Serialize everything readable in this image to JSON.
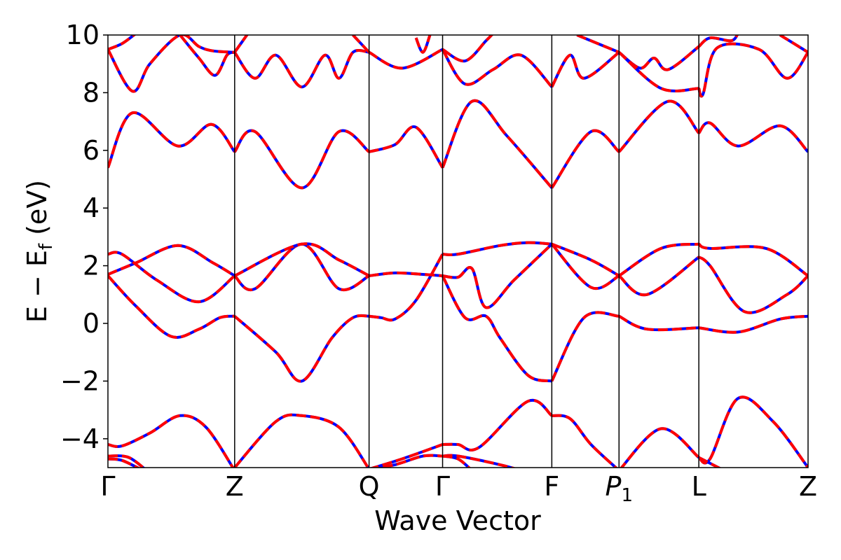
{
  "chart_data": {
    "type": "line",
    "title": "",
    "xlabel": "Wave Vector",
    "ylabel_main": "E − E",
    "ylabel_sub": "f",
    "ylabel_unit": " (eV)",
    "ylim": [
      -5,
      10
    ],
    "yticks": [
      -4,
      -2,
      0,
      2,
      4,
      6,
      8,
      10
    ],
    "ytick_labels": [
      "−4",
      "−2",
      "0",
      "2",
      "4",
      "6",
      "8",
      "10"
    ],
    "xlim": [
      0,
      1
    ],
    "kpoints": [
      {
        "x": 0.0,
        "label": "Γ",
        "sub": ""
      },
      {
        "x": 0.181,
        "label": "Z",
        "sub": ""
      },
      {
        "x": 0.373,
        "label": "Q",
        "sub": ""
      },
      {
        "x": 0.478,
        "label": "Γ",
        "sub": ""
      },
      {
        "x": 0.634,
        "label": "F",
        "sub": ""
      },
      {
        "x": 0.73,
        "label": "P",
        "sub": "1"
      },
      {
        "x": 0.844,
        "label": "L",
        "sub": ""
      },
      {
        "x": 1.0,
        "label": "Z",
        "sub": ""
      }
    ],
    "colors": {
      "solid": "#0000ff",
      "dashed": "#ff0000"
    },
    "bands": [
      {
        "points": [
          [
            0.0,
            -4.2
          ],
          [
            0.02,
            -4.25
          ],
          [
            0.06,
            -3.8
          ],
          [
            0.103,
            -3.2
          ],
          [
            0.14,
            -3.6
          ],
          [
            0.181,
            -5.1
          ]
        ]
      },
      {
        "points": [
          [
            0.0,
            -4.6
          ],
          [
            0.03,
            -4.65
          ],
          [
            0.06,
            -5.2
          ]
        ]
      },
      {
        "points": [
          [
            0.0,
            -4.7
          ],
          [
            0.02,
            -4.75
          ],
          [
            0.05,
            -5.1
          ]
        ]
      },
      {
        "points": [
          [
            0.0,
            1.65
          ],
          [
            0.04,
            0.6
          ],
          [
            0.09,
            -0.45
          ],
          [
            0.13,
            -0.2
          ],
          [
            0.16,
            0.2
          ],
          [
            0.181,
            0.25
          ]
        ]
      },
      {
        "points": [
          [
            0.0,
            1.7
          ],
          [
            0.04,
            2.1
          ],
          [
            0.1,
            2.7
          ],
          [
            0.15,
            2.1
          ],
          [
            0.181,
            1.65
          ]
        ]
      },
      {
        "points": [
          [
            0.0,
            2.4
          ],
          [
            0.02,
            2.4
          ],
          [
            0.07,
            1.5
          ],
          [
            0.13,
            0.75
          ],
          [
            0.181,
            1.65
          ]
        ]
      },
      {
        "points": [
          [
            0.0,
            5.4
          ],
          [
            0.035,
            7.3
          ],
          [
            0.1,
            6.15
          ],
          [
            0.148,
            6.9
          ],
          [
            0.181,
            5.95
          ]
        ]
      },
      {
        "points": [
          [
            0.0,
            9.5
          ],
          [
            0.035,
            8.05
          ],
          [
            0.06,
            9.0
          ],
          [
            0.103,
            10.0
          ],
          [
            0.13,
            9.6
          ],
          [
            0.15,
            9.45
          ],
          [
            0.181,
            9.4
          ]
        ]
      },
      {
        "points": [
          [
            0.0,
            9.5
          ],
          [
            0.02,
            9.7
          ],
          [
            0.04,
            10.05
          ]
        ]
      },
      {
        "points": [
          [
            0.103,
            10.0
          ],
          [
            0.13,
            9.2
          ],
          [
            0.153,
            8.6
          ],
          [
            0.17,
            9.3
          ],
          [
            0.181,
            9.4
          ]
        ]
      },
      {
        "points": [
          [
            0.181,
            -5.0
          ],
          [
            0.24,
            -3.4
          ],
          [
            0.277,
            -3.2
          ],
          [
            0.33,
            -3.6
          ],
          [
            0.373,
            -5.05
          ]
        ]
      },
      {
        "points": [
          [
            0.181,
            0.25
          ],
          [
            0.24,
            -1.0
          ],
          [
            0.277,
            -2.0
          ],
          [
            0.32,
            -0.5
          ],
          [
            0.35,
            0.2
          ],
          [
            0.373,
            0.25
          ]
        ]
      },
      {
        "points": [
          [
            0.181,
            1.65
          ],
          [
            0.21,
            1.2
          ],
          [
            0.277,
            2.75
          ],
          [
            0.33,
            1.2
          ],
          [
            0.373,
            1.65
          ]
        ]
      },
      {
        "points": [
          [
            0.181,
            1.65
          ],
          [
            0.277,
            2.75
          ],
          [
            0.33,
            2.2
          ],
          [
            0.373,
            1.65
          ]
        ]
      },
      {
        "points": [
          [
            0.181,
            5.95
          ],
          [
            0.21,
            6.65
          ],
          [
            0.277,
            4.7
          ],
          [
            0.33,
            6.65
          ],
          [
            0.373,
            5.95
          ]
        ]
      },
      {
        "points": [
          [
            0.181,
            9.4
          ],
          [
            0.21,
            8.5
          ],
          [
            0.24,
            9.3
          ],
          [
            0.277,
            8.2
          ],
          [
            0.31,
            9.3
          ],
          [
            0.33,
            8.5
          ],
          [
            0.35,
            9.4
          ],
          [
            0.373,
            9.4
          ]
        ]
      },
      {
        "points": [
          [
            0.181,
            9.4
          ],
          [
            0.2,
            10.05
          ]
        ]
      },
      {
        "points": [
          [
            0.35,
            10.0
          ],
          [
            0.373,
            9.4
          ]
        ]
      },
      {
        "points": [
          [
            0.373,
            0.25
          ],
          [
            0.39,
            0.2
          ],
          [
            0.41,
            0.15
          ],
          [
            0.44,
            0.8
          ],
          [
            0.478,
            2.4
          ]
        ]
      },
      {
        "points": [
          [
            0.373,
            1.65
          ],
          [
            0.41,
            1.75
          ],
          [
            0.45,
            1.7
          ],
          [
            0.478,
            1.65
          ]
        ]
      },
      {
        "points": [
          [
            0.373,
            5.95
          ],
          [
            0.41,
            6.2
          ],
          [
            0.44,
            6.8
          ],
          [
            0.478,
            5.4
          ]
        ]
      },
      {
        "points": [
          [
            0.373,
            9.4
          ],
          [
            0.42,
            8.85
          ],
          [
            0.478,
            9.5
          ]
        ]
      },
      {
        "points": [
          [
            0.373,
            -5.05
          ],
          [
            0.41,
            -4.9
          ],
          [
            0.45,
            -4.6
          ],
          [
            0.478,
            -4.6
          ]
        ]
      },
      {
        "points": [
          [
            0.373,
            -5.05
          ],
          [
            0.42,
            -4.7
          ],
          [
            0.478,
            -4.2
          ]
        ]
      },
      {
        "points": [
          [
            0.44,
            9.9
          ],
          [
            0.45,
            9.4
          ],
          [
            0.46,
            10.0
          ]
        ]
      },
      {
        "points": [
          [
            0.478,
            2.4
          ],
          [
            0.5,
            2.4
          ],
          [
            0.56,
            2.7
          ],
          [
            0.6,
            2.8
          ],
          [
            0.634,
            2.75
          ]
        ]
      },
      {
        "points": [
          [
            0.478,
            1.65
          ],
          [
            0.5,
            1.6
          ],
          [
            0.52,
            1.9
          ],
          [
            0.54,
            0.55
          ],
          [
            0.58,
            1.5
          ],
          [
            0.634,
            2.75
          ]
        ]
      },
      {
        "points": [
          [
            0.478,
            1.65
          ],
          [
            0.51,
            0.2
          ],
          [
            0.54,
            0.25
          ],
          [
            0.56,
            -0.5
          ],
          [
            0.6,
            -1.8
          ],
          [
            0.634,
            -2.0
          ]
        ]
      },
      {
        "points": [
          [
            0.478,
            5.4
          ],
          [
            0.52,
            7.7
          ],
          [
            0.57,
            6.5
          ],
          [
            0.634,
            4.7
          ]
        ]
      },
      {
        "points": [
          [
            0.478,
            9.5
          ],
          [
            0.51,
            8.3
          ],
          [
            0.55,
            8.8
          ],
          [
            0.59,
            9.3
          ],
          [
            0.634,
            8.2
          ]
        ]
      },
      {
        "points": [
          [
            0.478,
            9.5
          ],
          [
            0.51,
            9.1
          ],
          [
            0.54,
            9.8
          ],
          [
            0.55,
            10.05
          ]
        ]
      },
      {
        "points": [
          [
            0.478,
            -4.2
          ],
          [
            0.5,
            -4.2
          ],
          [
            0.53,
            -4.3
          ],
          [
            0.6,
            -2.7
          ],
          [
            0.634,
            -3.2
          ]
        ]
      },
      {
        "points": [
          [
            0.478,
            -4.6
          ],
          [
            0.5,
            -4.6
          ],
          [
            0.56,
            -4.9
          ],
          [
            0.59,
            -5.1
          ]
        ]
      },
      {
        "points": [
          [
            0.478,
            -4.6
          ],
          [
            0.5,
            -4.7
          ],
          [
            0.52,
            -5.1
          ]
        ]
      },
      {
        "points": [
          [
            0.634,
            2.75
          ],
          [
            0.69,
            1.25
          ],
          [
            0.73,
            1.65
          ]
        ]
      },
      {
        "points": [
          [
            0.634,
            2.75
          ],
          [
            0.69,
            2.2
          ],
          [
            0.73,
            1.65
          ]
        ]
      },
      {
        "points": [
          [
            0.634,
            -2.0
          ],
          [
            0.68,
            0.2
          ],
          [
            0.73,
            0.25
          ]
        ]
      },
      {
        "points": [
          [
            0.634,
            4.7
          ],
          [
            0.69,
            6.65
          ],
          [
            0.73,
            5.95
          ]
        ]
      },
      {
        "points": [
          [
            0.634,
            8.2
          ],
          [
            0.66,
            9.3
          ],
          [
            0.68,
            8.5
          ],
          [
            0.73,
            9.4
          ]
        ]
      },
      {
        "points": [
          [
            0.634,
            -3.2
          ],
          [
            0.66,
            -3.3
          ],
          [
            0.69,
            -4.2
          ],
          [
            0.73,
            -5.1
          ]
        ]
      },
      {
        "points": [
          [
            0.67,
            10.0
          ],
          [
            0.73,
            9.4
          ]
        ]
      },
      {
        "points": [
          [
            0.73,
            -5.1
          ],
          [
            0.79,
            -3.65
          ],
          [
            0.844,
            -4.65
          ]
        ]
      },
      {
        "points": [
          [
            0.73,
            0.25
          ],
          [
            0.77,
            -0.2
          ],
          [
            0.844,
            -0.15
          ]
        ]
      },
      {
        "points": [
          [
            0.73,
            1.65
          ],
          [
            0.77,
            1.0
          ],
          [
            0.844,
            2.3
          ]
        ]
      },
      {
        "points": [
          [
            0.73,
            1.65
          ],
          [
            0.79,
            2.6
          ],
          [
            0.844,
            2.75
          ]
        ]
      },
      {
        "points": [
          [
            0.73,
            5.95
          ],
          [
            0.8,
            7.7
          ],
          [
            0.844,
            6.6
          ]
        ]
      },
      {
        "points": [
          [
            0.73,
            9.4
          ],
          [
            0.76,
            8.85
          ],
          [
            0.78,
            9.2
          ],
          [
            0.8,
            8.8
          ],
          [
            0.844,
            9.6
          ]
        ]
      },
      {
        "points": [
          [
            0.73,
            9.4
          ],
          [
            0.79,
            8.15
          ],
          [
            0.844,
            8.15
          ]
        ]
      },
      {
        "points": [
          [
            0.844,
            -4.65
          ],
          [
            0.86,
            -4.7
          ],
          [
            0.9,
            -2.6
          ],
          [
            0.95,
            -3.4
          ],
          [
            1.0,
            -5.0
          ]
        ]
      },
      {
        "points": [
          [
            0.844,
            -4.65
          ],
          [
            0.88,
            -5.1
          ]
        ]
      },
      {
        "points": [
          [
            0.844,
            -0.15
          ],
          [
            0.9,
            -0.3
          ],
          [
            0.96,
            0.15
          ],
          [
            1.0,
            0.25
          ]
        ]
      },
      {
        "points": [
          [
            0.844,
            2.3
          ],
          [
            0.86,
            2.0
          ],
          [
            0.91,
            0.4
          ],
          [
            0.97,
            1.0
          ],
          [
            1.0,
            1.65
          ]
        ]
      },
      {
        "points": [
          [
            0.844,
            2.75
          ],
          [
            0.86,
            2.6
          ],
          [
            0.94,
            2.6
          ],
          [
            1.0,
            1.65
          ]
        ]
      },
      {
        "points": [
          [
            0.844,
            6.6
          ],
          [
            0.86,
            6.95
          ],
          [
            0.9,
            6.15
          ],
          [
            0.96,
            6.85
          ],
          [
            1.0,
            5.95
          ]
        ]
      },
      {
        "points": [
          [
            0.844,
            8.15
          ],
          [
            0.85,
            7.95
          ],
          [
            0.87,
            9.55
          ],
          [
            0.93,
            9.5
          ],
          [
            0.97,
            8.5
          ],
          [
            1.0,
            9.4
          ]
        ]
      },
      {
        "points": [
          [
            0.844,
            9.6
          ],
          [
            0.86,
            9.9
          ],
          [
            0.89,
            9.8
          ],
          [
            0.9,
            10.05
          ]
        ]
      },
      {
        "points": [
          [
            0.96,
            10.0
          ],
          [
            1.0,
            9.4
          ]
        ]
      }
    ]
  }
}
